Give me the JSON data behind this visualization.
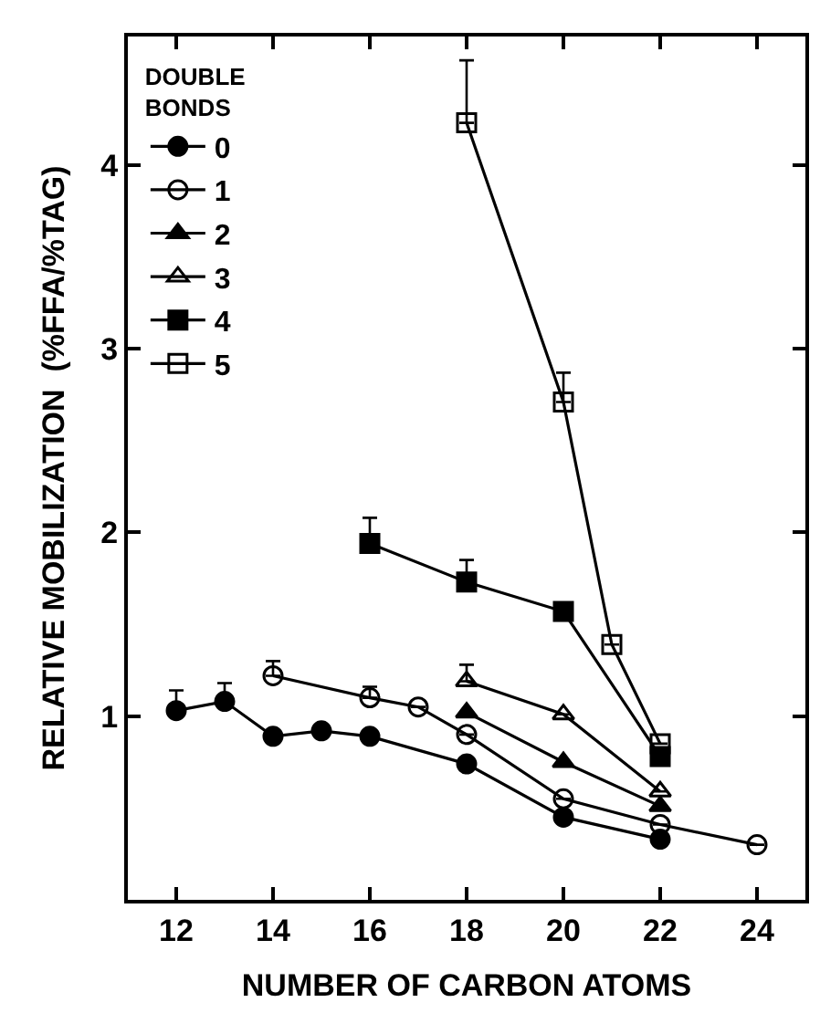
{
  "chart_data": {
    "type": "line",
    "xlabel": "NUMBER OF CARBON ATOMS",
    "ylabel": "RELATIVE MOBILIZATION  (%FFA/%TAG)",
    "legend_title": "DOUBLE\nBONDS",
    "legend": "top left",
    "line_style": "solid",
    "xlim": [
      11,
      25
    ],
    "xticks": [
      12,
      14,
      16,
      18,
      20,
      22,
      24
    ],
    "ylim": [
      0,
      4.7
    ],
    "yticks": [
      1,
      2,
      3,
      4
    ],
    "series": [
      {
        "name": "0",
        "color": "#000000",
        "marker": "circle",
        "x": [
          12,
          13,
          14,
          15,
          16,
          18,
          20,
          22
        ],
        "values": [
          1.03,
          1.08,
          0.89,
          0.92,
          0.89,
          0.74,
          0.45,
          0.33
        ],
        "errors": [
          [
            1.03,
            1.14
          ],
          [
            1.08,
            1.18
          ],
          null,
          null,
          null,
          null,
          null,
          null
        ]
      },
      {
        "name": "1",
        "color": "#000000",
        "marker": "circle-open",
        "x": [
          14,
          16,
          17,
          18,
          20,
          22,
          24
        ],
        "values": [
          1.22,
          1.1,
          1.05,
          0.9,
          0.55,
          0.41,
          0.3
        ],
        "errors": [
          [
            1.22,
            1.3
          ],
          [
            1.1,
            1.16
          ],
          null,
          null,
          null,
          null,
          null
        ]
      },
      {
        "name": "2",
        "color": "#000000",
        "marker": "triangle",
        "x": [
          18,
          20,
          22
        ],
        "values": [
          1.02,
          0.75,
          0.51
        ]
      },
      {
        "name": "3",
        "color": "#000000",
        "marker": "triangle-open",
        "x": [
          18,
          20,
          22
        ],
        "values": [
          1.19,
          1.01,
          0.59
        ],
        "errors": [
          [
            1.19,
            1.28
          ],
          null,
          null
        ]
      },
      {
        "name": "4",
        "color": "#000000",
        "marker": "square",
        "x": [
          16,
          18,
          20,
          22
        ],
        "values": [
          1.94,
          1.73,
          1.57,
          0.78
        ],
        "errors": [
          [
            1.94,
            2.08
          ],
          [
            1.73,
            1.85
          ],
          null,
          null
        ]
      },
      {
        "name": "5",
        "color": "#000000",
        "marker": "square-open",
        "x": [
          18,
          20,
          21,
          22
        ],
        "values": [
          4.23,
          2.71,
          1.39,
          0.85
        ],
        "errors": [
          [
            4.23,
            4.57
          ],
          [
            2.71,
            2.87
          ],
          null,
          null
        ]
      }
    ]
  }
}
